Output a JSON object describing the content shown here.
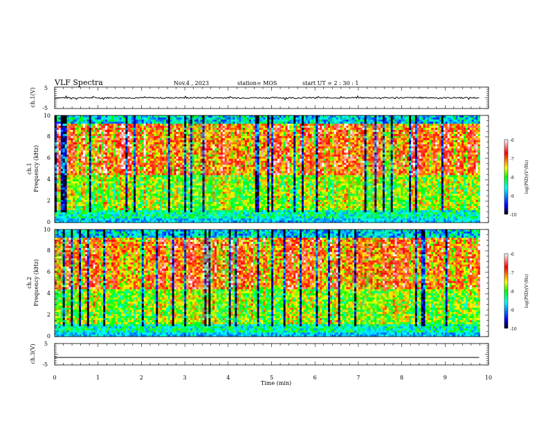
{
  "header": {
    "title": "VLF Spectra",
    "date": "Nov.4 , 2023",
    "station": "station= MOS",
    "start": "start UT = 2 : 30 : 1"
  },
  "chart_data": [
    {
      "type": "line",
      "panel": "ch1-waveform",
      "ylabel": "ch.1(V)",
      "yticks": [
        "5",
        "-5"
      ],
      "ylim": [
        -5,
        5
      ],
      "xlim": [
        0,
        10
      ],
      "series": [
        {
          "x": [
            0,
            9.8
          ],
          "values": [
            0,
            0
          ]
        }
      ],
      "color": "#000000"
    },
    {
      "type": "heatmap",
      "panel": "ch1-spectrogram",
      "ylabel": "ch.1\nFrequency (kHz)",
      "ylabel_line1": "ch.1",
      "ylabel_line2": "Frequency (kHz)",
      "yticks": [
        "0",
        "2",
        "4",
        "6",
        "8",
        "10"
      ],
      "ylim": [
        0,
        10
      ],
      "xlim": [
        0,
        10
      ],
      "data_extent_x": [
        0,
        9.8
      ],
      "colorbar": {
        "label": "log(PSD)(V²/Hz)",
        "ticks": [
          "-6",
          "-7",
          "-8",
          "-9",
          "-10"
        ],
        "range": [
          -10,
          -6
        ],
        "colors": [
          "#000000",
          "#0000ff",
          "#00ffff",
          "#00ff00",
          "#ffff00",
          "#ff0000",
          "#ffffff"
        ]
      }
    },
    {
      "type": "heatmap",
      "panel": "ch2-spectrogram",
      "ylabel": "ch.2\nFrequency (kHz)",
      "ylabel_line1": "ch.2",
      "ylabel_line2": "Frequency (kHz)",
      "yticks": [
        "0",
        "2",
        "4",
        "6",
        "8",
        "10"
      ],
      "ylim": [
        0,
        10
      ],
      "xlim": [
        0,
        10
      ],
      "data_extent_x": [
        0,
        9.8
      ],
      "colorbar": {
        "label": "log(PSD)(V²/Hz)",
        "ticks": [
          "-6",
          "-7",
          "-8",
          "-9",
          "-10"
        ],
        "range": [
          -10,
          -6
        ],
        "colors": [
          "#000000",
          "#0000ff",
          "#00ffff",
          "#00ff00",
          "#ffff00",
          "#ff0000",
          "#ffffff"
        ]
      }
    },
    {
      "type": "line",
      "panel": "ch3-waveform",
      "ylabel": "ch.3(V)",
      "yticks": [
        "5",
        "-5"
      ],
      "ylim": [
        -5,
        5
      ],
      "xlim": [
        0,
        10
      ],
      "series": [
        {
          "x": [
            0,
            9.8
          ],
          "values": [
            -1.5,
            -1.5
          ]
        }
      ],
      "color": "#000000"
    }
  ],
  "xaxis": {
    "label": "Time (min)",
    "ticks": [
      "0",
      "1",
      "2",
      "3",
      "4",
      "5",
      "6",
      "7",
      "8",
      "9",
      "10"
    ]
  }
}
